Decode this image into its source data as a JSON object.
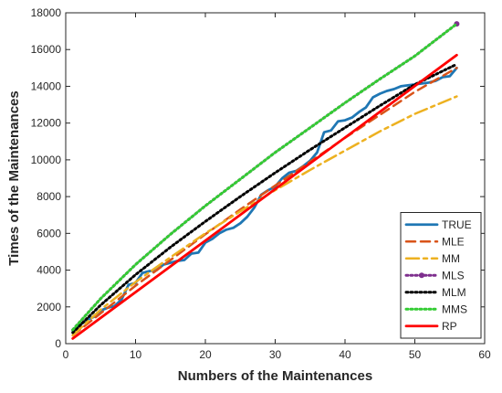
{
  "chart_data": {
    "type": "line",
    "title": "",
    "xlabel": "Numbers of the Maintenances",
    "ylabel": "Times of the Maintenances",
    "xlim": [
      0,
      60
    ],
    "ylim": [
      0,
      18000
    ],
    "xticks": [
      0,
      10,
      20,
      30,
      40,
      50,
      60
    ],
    "yticks": [
      0,
      2000,
      4000,
      6000,
      8000,
      10000,
      12000,
      14000,
      16000,
      18000
    ],
    "grid": false,
    "legend_position": "bottom-right",
    "series": [
      {
        "name": "TRUE",
        "color": "#1f77b4",
        "style": "solid",
        "points": [
          [
            1,
            700
          ],
          [
            2,
            1000
          ],
          [
            3,
            1300
          ],
          [
            4,
            1450
          ],
          [
            5,
            1800
          ],
          [
            6,
            1950
          ],
          [
            7,
            2050
          ],
          [
            8,
            2400
          ],
          [
            9,
            3200
          ],
          [
            10,
            3300
          ],
          [
            11,
            3850
          ],
          [
            12,
            3950
          ],
          [
            13,
            4000
          ],
          [
            14,
            4300
          ],
          [
            15,
            4400
          ],
          [
            16,
            4500
          ],
          [
            17,
            4550
          ],
          [
            18,
            4900
          ],
          [
            19,
            4950
          ],
          [
            20,
            5500
          ],
          [
            21,
            5700
          ],
          [
            22,
            6000
          ],
          [
            23,
            6200
          ],
          [
            24,
            6300
          ],
          [
            25,
            6550
          ],
          [
            26,
            6900
          ],
          [
            27,
            7400
          ],
          [
            28,
            8100
          ],
          [
            29,
            8350
          ],
          [
            30,
            8550
          ],
          [
            31,
            9000
          ],
          [
            32,
            9300
          ],
          [
            33,
            9400
          ],
          [
            34,
            9650
          ],
          [
            35,
            9950
          ],
          [
            36,
            10400
          ],
          [
            37,
            11500
          ],
          [
            38,
            11600
          ],
          [
            39,
            12100
          ],
          [
            40,
            12150
          ],
          [
            41,
            12300
          ],
          [
            42,
            12600
          ],
          [
            43,
            12850
          ],
          [
            44,
            13400
          ],
          [
            45,
            13600
          ],
          [
            46,
            13750
          ],
          [
            47,
            13850
          ],
          [
            48,
            14000
          ],
          [
            49,
            14050
          ],
          [
            50,
            14100
          ],
          [
            51,
            14150
          ],
          [
            52,
            14200
          ],
          [
            53,
            14300
          ],
          [
            54,
            14500
          ],
          [
            55,
            14550
          ],
          [
            56,
            15000
          ]
        ]
      },
      {
        "name": "MLE",
        "color": "#d95319",
        "style": "dash",
        "points": [
          [
            1,
            450
          ],
          [
            5,
            1650
          ],
          [
            10,
            3150
          ],
          [
            15,
            4550
          ],
          [
            20,
            5950
          ],
          [
            25,
            7300
          ],
          [
            30,
            8600
          ],
          [
            35,
            9900
          ],
          [
            40,
            11200
          ],
          [
            45,
            12450
          ],
          [
            50,
            13700
          ],
          [
            56,
            15000
          ]
        ]
      },
      {
        "name": "MM",
        "color": "#edb120",
        "style": "dashdot",
        "points": [
          [
            1,
            450
          ],
          [
            5,
            1850
          ],
          [
            10,
            3350
          ],
          [
            15,
            4700
          ],
          [
            20,
            6000
          ],
          [
            25,
            7200
          ],
          [
            30,
            8350
          ],
          [
            35,
            9450
          ],
          [
            40,
            10500
          ],
          [
            45,
            11550
          ],
          [
            50,
            12500
          ],
          [
            56,
            13450
          ]
        ]
      },
      {
        "name": "MLS",
        "color": "#7e2f8e",
        "style": "dotted-marker",
        "points": [
          [
            1,
            750
          ],
          [
            5,
            2450
          ],
          [
            10,
            4300
          ],
          [
            15,
            5950
          ],
          [
            20,
            7500
          ],
          [
            25,
            8950
          ],
          [
            30,
            10400
          ],
          [
            35,
            11750
          ],
          [
            40,
            13100
          ],
          [
            45,
            14400
          ],
          [
            50,
            15650
          ],
          [
            56,
            17400
          ]
        ]
      },
      {
        "name": "MLM",
        "color": "#000000",
        "style": "dotted",
        "points": [
          [
            1,
            600
          ],
          [
            5,
            2100
          ],
          [
            10,
            3750
          ],
          [
            15,
            5250
          ],
          [
            20,
            6650
          ],
          [
            25,
            8000
          ],
          [
            30,
            9300
          ],
          [
            35,
            10550
          ],
          [
            40,
            11750
          ],
          [
            45,
            12950
          ],
          [
            50,
            14100
          ],
          [
            56,
            15200
          ]
        ]
      },
      {
        "name": "MMS",
        "color": "#33cc33",
        "style": "dotted",
        "points": [
          [
            1,
            750
          ],
          [
            5,
            2450
          ],
          [
            10,
            4300
          ],
          [
            15,
            5950
          ],
          [
            20,
            7500
          ],
          [
            25,
            8950
          ],
          [
            30,
            10400
          ],
          [
            35,
            11750
          ],
          [
            40,
            13100
          ],
          [
            45,
            14400
          ],
          [
            50,
            15650
          ],
          [
            56,
            17400
          ]
        ]
      },
      {
        "name": "RP",
        "color": "#ff0000",
        "style": "solid",
        "points": [
          [
            1,
            280
          ],
          [
            56,
            15700
          ]
        ]
      }
    ]
  }
}
